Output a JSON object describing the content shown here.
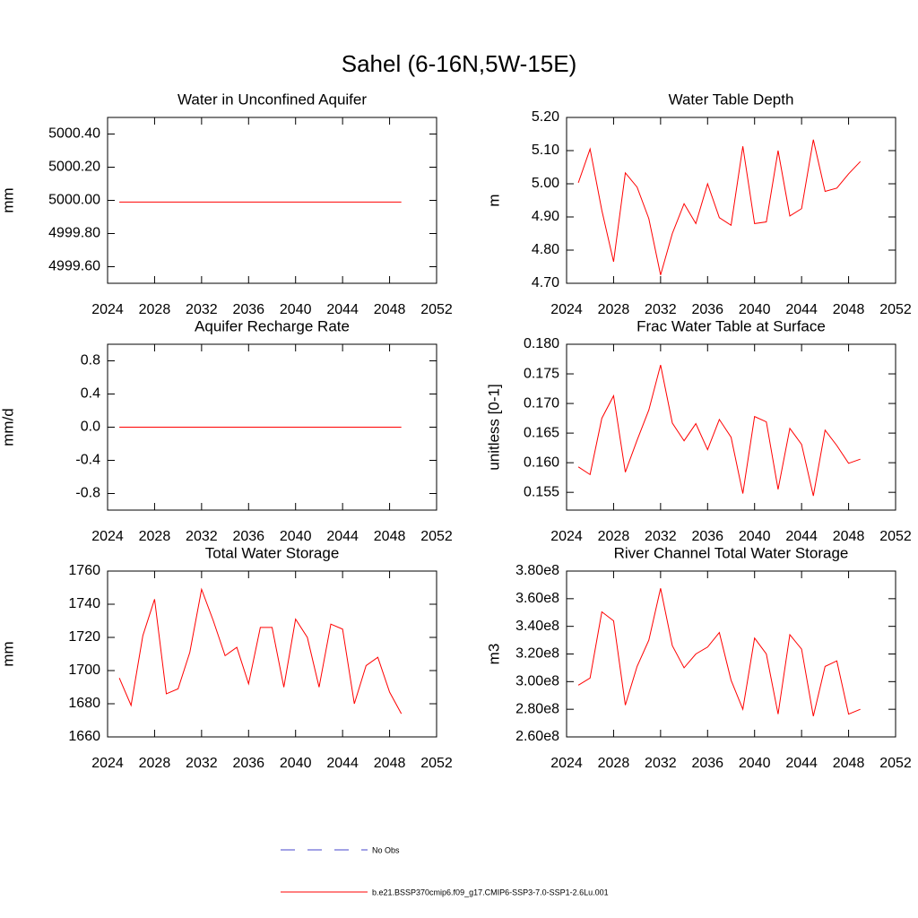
{
  "title": "Sahel (6-16N,5W-15E)",
  "legend": [
    {
      "name": "No Obs",
      "color": "#4444cc",
      "dash": true
    },
    {
      "name": "b.e21.BSSP370cmip6.f09_g17.CMIP6-SSP3-7.0-SSP1-2.6Lu.001",
      "color": "#ff0000",
      "dash": false
    }
  ],
  "chart_data": [
    {
      "type": "line",
      "title": "Water in Unconfined Aquifer",
      "y_label": "mm",
      "x": [
        2025,
        2026,
        2027,
        2028,
        2029,
        2030,
        2031,
        2032,
        2033,
        2034,
        2035,
        2036,
        2037,
        2038,
        2039,
        2040,
        2041,
        2042,
        2043,
        2044,
        2045,
        2046,
        2047,
        2048,
        2049
      ],
      "xlim": [
        2024,
        2052
      ],
      "xticks": [
        2024,
        2028,
        2032,
        2036,
        2040,
        2044,
        2048,
        2052
      ],
      "ylim": [
        4999.5,
        5000.5
      ],
      "yticks": [
        {
          "value": 4999.6,
          "label": "4999.60"
        },
        {
          "value": 4999.8,
          "label": "4999.80"
        },
        {
          "value": 5000,
          "label": "5000.00"
        },
        {
          "value": 5000.2,
          "label": "5000.20"
        },
        {
          "value": 5000.4,
          "label": "5000.40"
        }
      ],
      "series": [
        {
          "color": "#ff0000",
          "values": [
            4999.99,
            4999.99,
            4999.99,
            4999.99,
            4999.99,
            4999.99,
            4999.99,
            4999.99,
            4999.99,
            4999.99,
            4999.99,
            4999.99,
            4999.99,
            4999.99,
            4999.99,
            4999.99,
            4999.99,
            4999.99,
            4999.99,
            4999.99,
            4999.99,
            4999.99,
            4999.99,
            4999.99,
            4999.99
          ]
        }
      ]
    },
    {
      "type": "line",
      "title": "Water Table Depth",
      "y_label": "m",
      "x": [
        2025,
        2026,
        2027,
        2028,
        2029,
        2030,
        2031,
        2032,
        2033,
        2034,
        2035,
        2036,
        2037,
        2038,
        2039,
        2040,
        2041,
        2042,
        2043,
        2044,
        2045,
        2046,
        2047,
        2048,
        2049
      ],
      "xlim": [
        2024,
        2052
      ],
      "xticks": [
        2024,
        2028,
        2032,
        2036,
        2040,
        2044,
        2048,
        2052
      ],
      "ylim": [
        4.7,
        5.2
      ],
      "yticks": [
        {
          "value": 4.7,
          "label": "4.70"
        },
        {
          "value": 4.8,
          "label": "4.80"
        },
        {
          "value": 4.9,
          "label": "4.90"
        },
        {
          "value": 5.0,
          "label": "5.00"
        },
        {
          "value": 5.1,
          "label": "5.10"
        },
        {
          "value": 5.2,
          "label": "5.20"
        }
      ],
      "series": [
        {
          "color": "#ff0000",
          "values": [
            5.003,
            5.105,
            4.92,
            4.765,
            5.033,
            4.99,
            4.895,
            4.725,
            4.85,
            4.94,
            4.88,
            5.0,
            4.898,
            4.875,
            5.113,
            4.88,
            4.885,
            5.1,
            4.903,
            4.925,
            5.133,
            4.977,
            4.987,
            5.03,
            5.067
          ]
        }
      ]
    },
    {
      "type": "line",
      "title": "Aquifer Recharge Rate",
      "y_label": "mm/d",
      "x": [
        2025,
        2026,
        2027,
        2028,
        2029,
        2030,
        2031,
        2032,
        2033,
        2034,
        2035,
        2036,
        2037,
        2038,
        2039,
        2040,
        2041,
        2042,
        2043,
        2044,
        2045,
        2046,
        2047,
        2048,
        2049
      ],
      "xlim": [
        2024,
        2052
      ],
      "xticks": [
        2024,
        2028,
        2032,
        2036,
        2040,
        2044,
        2048,
        2052
      ],
      "ylim": [
        -1,
        1
      ],
      "yticks": [
        -0.8,
        -0.4,
        {
          "value": 0,
          "label": "0.0"
        },
        0.4,
        0.8
      ],
      "series": [
        {
          "color": "#ff0000",
          "values": [
            0,
            0,
            0,
            0,
            0,
            0,
            0,
            0,
            0,
            0,
            0,
            0,
            0,
            0,
            0,
            0,
            0,
            0,
            0,
            0,
            0,
            0,
            0,
            0,
            0
          ]
        }
      ]
    },
    {
      "type": "line",
      "title": "Frac Water Table at Surface",
      "y_label": "unitless [0-1]",
      "x": [
        2025,
        2026,
        2027,
        2028,
        2029,
        2030,
        2031,
        2032,
        2033,
        2034,
        2035,
        2036,
        2037,
        2038,
        2039,
        2040,
        2041,
        2042,
        2043,
        2044,
        2045,
        2046,
        2047,
        2048,
        2049
      ],
      "xlim": [
        2024,
        2052
      ],
      "xticks": [
        2024,
        2028,
        2032,
        2036,
        2040,
        2044,
        2048,
        2052
      ],
      "ylim": [
        0.152,
        0.18
      ],
      "yticks": [
        0.155,
        {
          "value": 0.16,
          "label": "0.160"
        },
        0.165,
        {
          "value": 0.17,
          "label": "0.170"
        },
        0.175,
        {
          "value": 0.18,
          "label": "0.180"
        }
      ],
      "series": [
        {
          "color": "#ff0000",
          "values": [
            0.1593,
            0.158,
            0.1675,
            0.1713,
            0.1584,
            0.1638,
            0.1689,
            0.1765,
            0.1667,
            0.1637,
            0.1666,
            0.1622,
            0.1673,
            0.1643,
            0.1548,
            0.1678,
            0.1669,
            0.1555,
            0.1658,
            0.1631,
            0.1544,
            0.1655,
            0.1629,
            0.1599,
            0.1606
          ]
        }
      ]
    },
    {
      "type": "line",
      "title": "Total Water Storage",
      "y_label": "mm",
      "x": [
        2025,
        2026,
        2027,
        2028,
        2029,
        2030,
        2031,
        2032,
        2033,
        2034,
        2035,
        2036,
        2037,
        2038,
        2039,
        2040,
        2041,
        2042,
        2043,
        2044,
        2045,
        2046,
        2047,
        2048,
        2049
      ],
      "xlim": [
        2024,
        2052
      ],
      "xticks": [
        2024,
        2028,
        2032,
        2036,
        2040,
        2044,
        2048,
        2052
      ],
      "ylim": [
        1660,
        1760
      ],
      "yticks": [
        1660,
        1680,
        1700,
        1720,
        1740,
        1760
      ],
      "series": [
        {
          "color": "#ff0000",
          "values": [
            1695.5,
            1679,
            1721,
            1743,
            1686,
            1689,
            1711,
            1749,
            1730,
            1709,
            1714,
            1692,
            1726,
            1726,
            1690,
            1731,
            1720,
            1690,
            1728,
            1725,
            1680,
            1703,
            1708,
            1687,
            1674
          ]
        }
      ]
    },
    {
      "type": "line",
      "title": "River Channel Total Water Storage",
      "y_label": "m3",
      "x": [
        2025,
        2026,
        2027,
        2028,
        2029,
        2030,
        2031,
        2032,
        2033,
        2034,
        2035,
        2036,
        2037,
        2038,
        2039,
        2040,
        2041,
        2042,
        2043,
        2044,
        2045,
        2046,
        2047,
        2048,
        2049
      ],
      "xlim": [
        2024,
        2052
      ],
      "xticks": [
        2024,
        2028,
        2032,
        2036,
        2040,
        2044,
        2048,
        2052
      ],
      "ylim": [
        260000000,
        380000000
      ],
      "yticks": [
        {
          "value": 260000000,
          "label": "2.60e8"
        },
        {
          "value": 280000000,
          "label": "2.80e8"
        },
        {
          "value": 300000000,
          "label": "3.00e8"
        },
        {
          "value": 320000000,
          "label": "3.20e8"
        },
        {
          "value": 340000000,
          "label": "3.40e8"
        },
        {
          "value": 360000000,
          "label": "3.60e8"
        },
        {
          "value": 380000000,
          "label": "3.80e8"
        }
      ],
      "series": [
        {
          "color": "#ff0000",
          "values": [
            297400000,
            302600000,
            350500000,
            344000000,
            283000000,
            311000000,
            330000000,
            367500000,
            326000000,
            310000000,
            320000000,
            325000000,
            335500000,
            301000000,
            280000000,
            331500000,
            320000000,
            276500000,
            334000000,
            323500000,
            275000000,
            311000000,
            315000000,
            276500000,
            280000000
          ]
        }
      ]
    }
  ]
}
